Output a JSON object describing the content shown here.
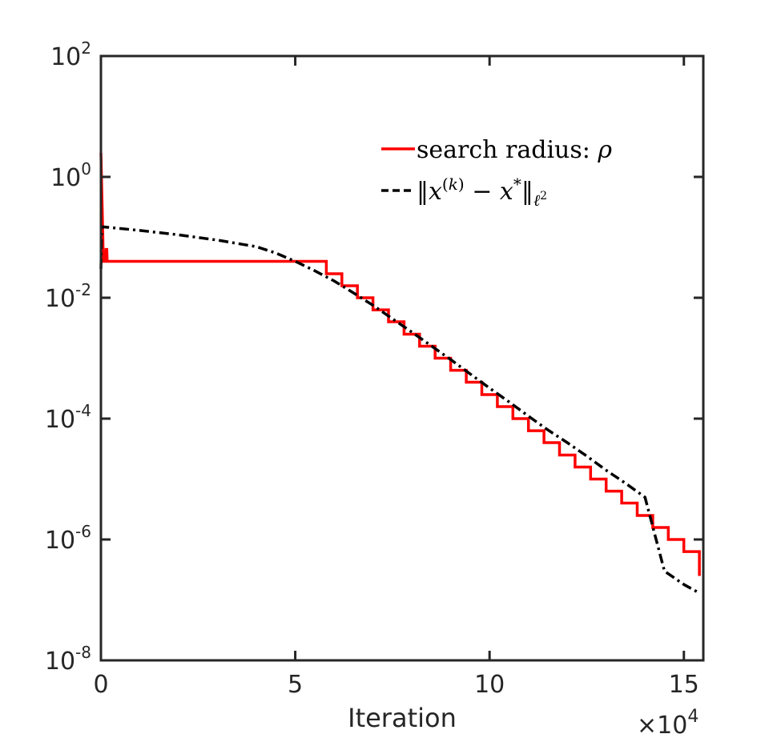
{
  "chart_data": {
    "type": "line",
    "title": "",
    "xlabel": "Iteration",
    "ylabel": "",
    "x_multiplier": "×10",
    "x_multiplier_exp": "4",
    "xlim": [
      0,
      15.5
    ],
    "ylim_log10": [
      -8,
      2
    ],
    "yscale": "log",
    "grid": false,
    "legend_position": "top-right",
    "x_ticks": [
      0,
      5,
      10,
      15
    ],
    "y_ticks": [
      {
        "base": "10",
        "exp": "2",
        "log10": 2
      },
      {
        "base": "10",
        "exp": "0",
        "log10": 0
      },
      {
        "base": "10",
        "exp": "-2",
        "log10": -2
      },
      {
        "base": "10",
        "exp": "-4",
        "log10": -4
      },
      {
        "base": "10",
        "exp": "-6",
        "log10": -6
      },
      {
        "base": "10",
        "exp": "-8",
        "log10": -8
      }
    ],
    "series": [
      {
        "name": "search radius: ρ",
        "legend_text": "search radius: ",
        "legend_math": "ρ",
        "color": "#ff0000",
        "style": "solid",
        "points": [
          [
            0.0,
            2.5
          ],
          [
            0.05,
            0.1
          ],
          [
            0.06,
            0.04
          ],
          [
            0.12,
            0.04
          ],
          [
            0.13,
            0.063
          ],
          [
            0.15,
            0.063
          ],
          [
            0.16,
            0.04
          ],
          [
            5.8,
            0.04
          ],
          [
            5.8,
            0.025
          ],
          [
            6.2,
            0.025
          ],
          [
            6.2,
            0.0158
          ],
          [
            6.6,
            0.0158
          ],
          [
            6.6,
            0.01
          ],
          [
            7.0,
            0.01
          ],
          [
            7.0,
            0.0063
          ],
          [
            7.4,
            0.0063
          ],
          [
            7.4,
            0.004
          ],
          [
            7.8,
            0.004
          ],
          [
            7.8,
            0.0025
          ],
          [
            8.2,
            0.0025
          ],
          [
            8.2,
            0.00158
          ],
          [
            8.6,
            0.00158
          ],
          [
            8.6,
            0.001
          ],
          [
            9.0,
            0.001
          ],
          [
            9.0,
            0.00063
          ],
          [
            9.4,
            0.00063
          ],
          [
            9.4,
            0.0004
          ],
          [
            9.8,
            0.0004
          ],
          [
            9.8,
            0.00025
          ],
          [
            10.2,
            0.00025
          ],
          [
            10.2,
            0.000158
          ],
          [
            10.6,
            0.000158
          ],
          [
            10.6,
            0.0001
          ],
          [
            11.0,
            0.0001
          ],
          [
            11.0,
            6.3e-05
          ],
          [
            11.4,
            6.3e-05
          ],
          [
            11.4,
            4e-05
          ],
          [
            11.8,
            4e-05
          ],
          [
            11.8,
            2.5e-05
          ],
          [
            12.2,
            2.5e-05
          ],
          [
            12.2,
            1.58e-05
          ],
          [
            12.6,
            1.58e-05
          ],
          [
            12.6,
            1e-05
          ],
          [
            13.0,
            1e-05
          ],
          [
            13.0,
            6.3e-06
          ],
          [
            13.4,
            6.3e-06
          ],
          [
            13.4,
            4e-06
          ],
          [
            13.8,
            4e-06
          ],
          [
            13.8,
            2.5e-06
          ],
          [
            14.2,
            2.5e-06
          ],
          [
            14.2,
            1.58e-06
          ],
          [
            14.6,
            1.58e-06
          ],
          [
            14.6,
            1e-06
          ],
          [
            15.0,
            1e-06
          ],
          [
            15.0,
            6.3e-07
          ],
          [
            15.4,
            6.3e-07
          ],
          [
            15.4,
            2.5e-07
          ]
        ]
      },
      {
        "name": "‖x^(k) − x*‖_ℓ²",
        "legend_text": "",
        "legend_math": "‖x(k) − x*‖ℓ2",
        "color": "#000000",
        "style": "dashdot",
        "points": [
          [
            0.0,
            0.03
          ],
          [
            0.02,
            0.15
          ],
          [
            1.0,
            0.13
          ],
          [
            2.0,
            0.11
          ],
          [
            3.0,
            0.09
          ],
          [
            4.0,
            0.07
          ],
          [
            4.5,
            0.055
          ],
          [
            5.0,
            0.04
          ],
          [
            5.5,
            0.028
          ],
          [
            6.0,
            0.019
          ],
          [
            6.5,
            0.012
          ],
          [
            7.0,
            0.0075
          ],
          [
            7.5,
            0.0045
          ],
          [
            8.0,
            0.0027
          ],
          [
            8.5,
            0.0016
          ],
          [
            9.0,
            0.00095
          ],
          [
            9.5,
            0.00055
          ],
          [
            10.0,
            0.00032
          ],
          [
            10.5,
            0.00019
          ],
          [
            11.0,
            0.00011
          ],
          [
            11.5,
            6.5e-05
          ],
          [
            12.0,
            4e-05
          ],
          [
            12.5,
            2.4e-05
          ],
          [
            13.0,
            1.4e-05
          ],
          [
            13.5,
            8.5e-06
          ],
          [
            14.0,
            5e-06
          ],
          [
            14.5,
            3e-07
          ],
          [
            15.0,
            1.8e-07
          ],
          [
            15.4,
            1.3e-07
          ]
        ]
      }
    ]
  }
}
